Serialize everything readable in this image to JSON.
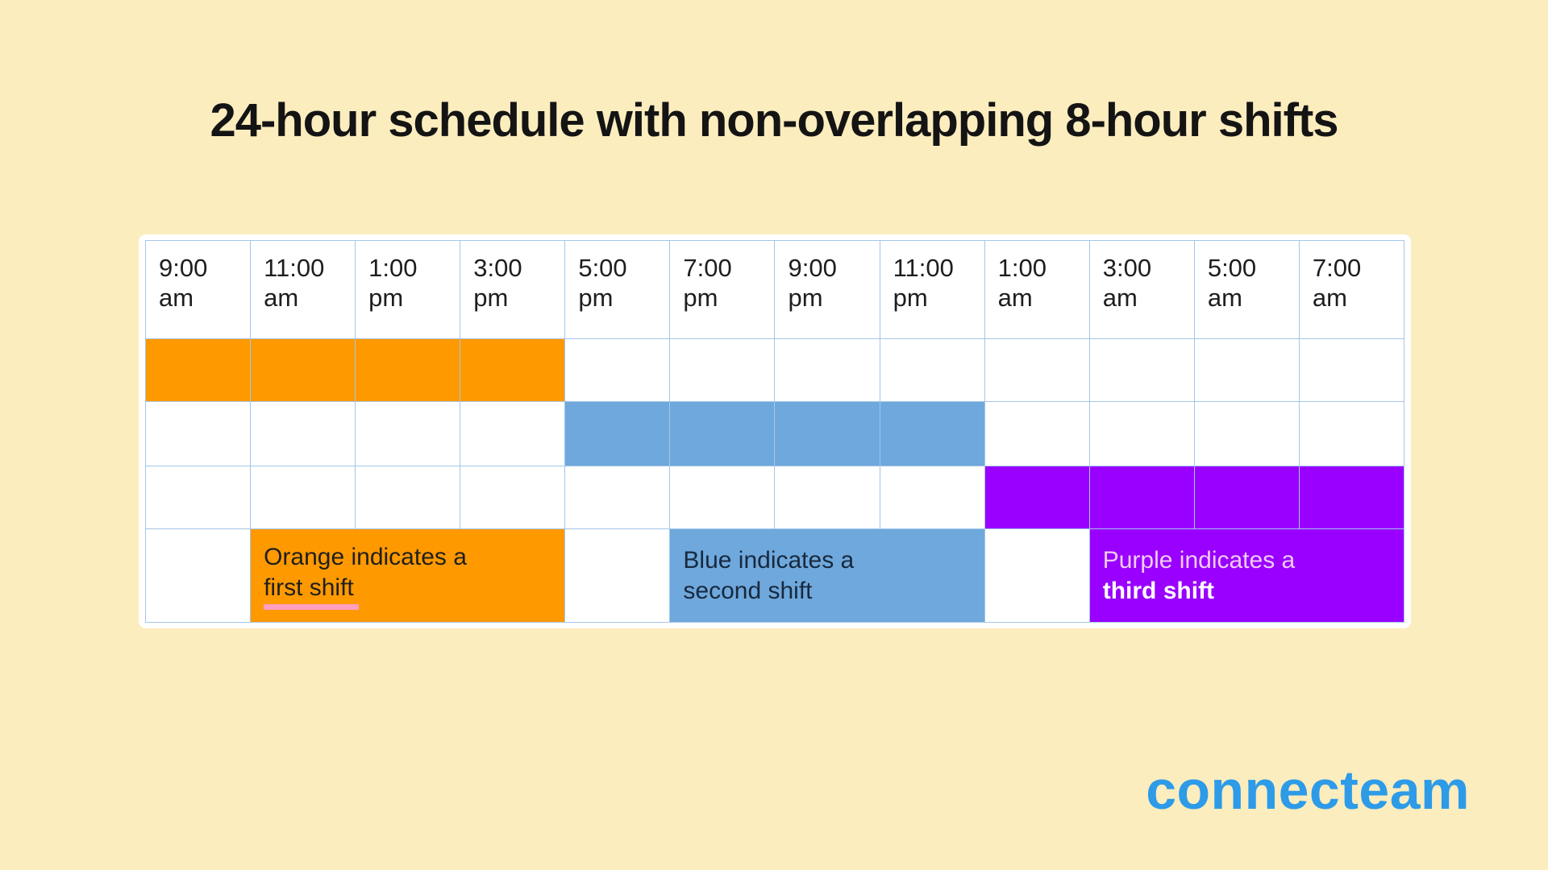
{
  "title": "24-hour schedule with non-overlapping 8-hour shifts",
  "schedule": {
    "headers": [
      "9:00 am",
      "11:00 am",
      "1:00 pm",
      "3:00 pm",
      "5:00 pm",
      "7:00 pm",
      "9:00 pm",
      "11:00 pm",
      "1:00 am",
      "3:00 am",
      "5:00 am",
      "7:00 am"
    ],
    "legend": {
      "first": {
        "line1": "Orange indicates a",
        "line2": "first shift"
      },
      "second": {
        "line1": "Blue indicates a",
        "line2": "second shift"
      },
      "third": {
        "line1": "Purple indicates a",
        "line2": "third shift"
      }
    }
  },
  "logo": {
    "text": "connecteam"
  },
  "colors": {
    "bg": "#FCEDBE",
    "panel": "#FFFFFF",
    "border": "#A4C6E8",
    "shift_first": "#FF9900",
    "shift_second": "#6FA8DC",
    "shift_third": "#9900FF",
    "underline_pink": "#FF9FBF",
    "title_color": "#141414",
    "logo_blue": "#2D9BE8"
  },
  "chart_data": {
    "type": "table",
    "title": "24-hour schedule with non-overlapping 8-hour shifts",
    "columns": [
      "9:00 am",
      "11:00 am",
      "1:00 pm",
      "3:00 pm",
      "5:00 pm",
      "7:00 pm",
      "9:00 pm",
      "11:00 pm",
      "1:00 am",
      "3:00 am",
      "5:00 am",
      "7:00 am"
    ],
    "rows": [
      {
        "name": "first shift",
        "color": "#FF9900",
        "filled_columns": [
          "9:00 am",
          "11:00 am",
          "1:00 pm",
          "3:00 pm"
        ]
      },
      {
        "name": "second shift",
        "color": "#6FA8DC",
        "filled_columns": [
          "5:00 pm",
          "7:00 pm",
          "9:00 pm",
          "11:00 pm"
        ]
      },
      {
        "name": "third shift",
        "color": "#9900FF",
        "filled_columns": [
          "1:00 am",
          "3:00 am",
          "5:00 am",
          "7:00 am"
        ]
      }
    ],
    "legend": [
      "Orange indicates a first shift",
      "Blue indicates a second shift",
      "Purple indicates a third shift"
    ],
    "layout": {
      "grid": "on",
      "legend_position": "bottom-row-merged-cells"
    }
  }
}
